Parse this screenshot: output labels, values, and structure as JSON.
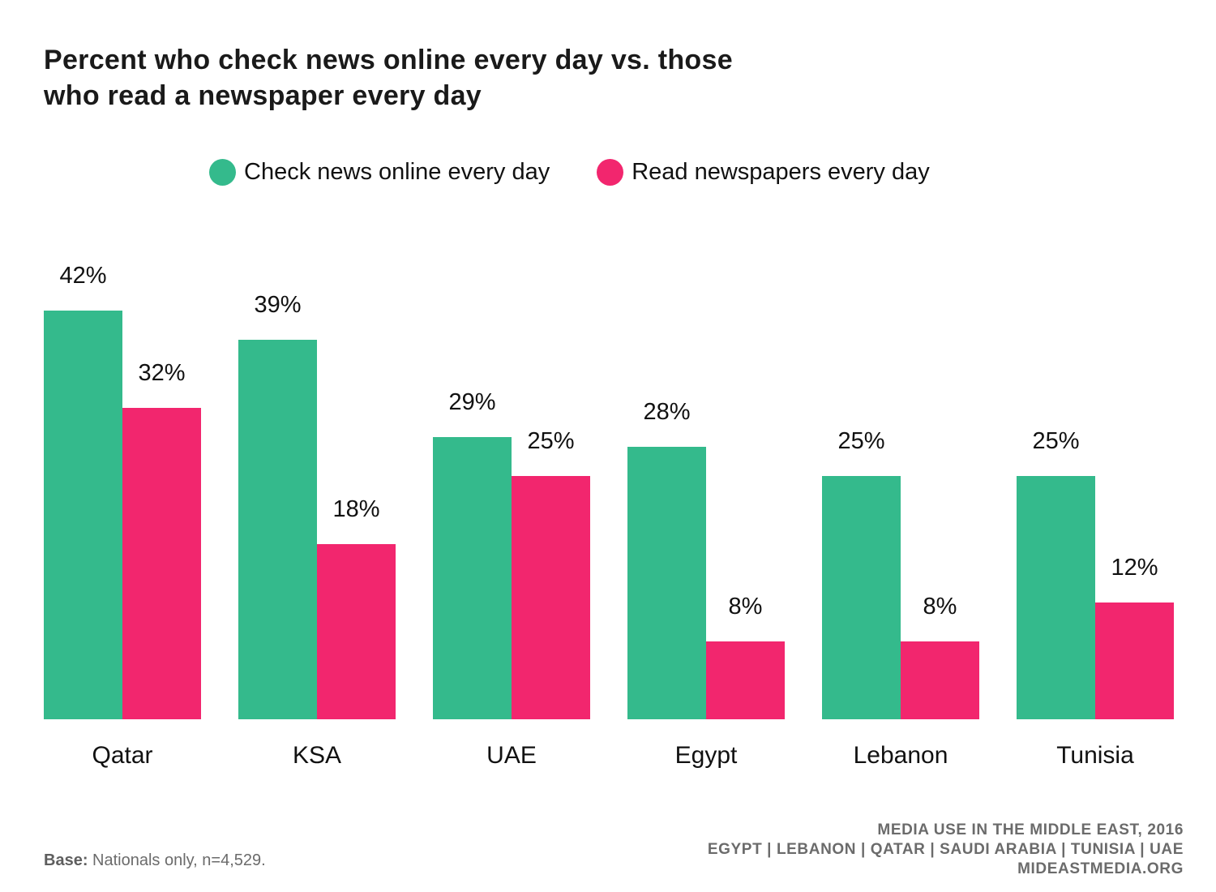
{
  "title_lines": [
    "Percent who check news online every day vs. those",
    "who read a newspaper every day"
  ],
  "legend": [
    {
      "label": "Check news online every day",
      "color": "#34ba8c"
    },
    {
      "label": "Read newspapers every day",
      "color": "#f2266e"
    }
  ],
  "chart_data": {
    "type": "bar",
    "title": "Percent who check news online every day vs. those who read a newspaper every day",
    "categories": [
      "Qatar",
      "KSA",
      "UAE",
      "Egypt",
      "Lebanon",
      "Tunisia"
    ],
    "series": [
      {
        "name": "Check news online every day",
        "color": "#34ba8c",
        "values": [
          42,
          39,
          29,
          28,
          25,
          25
        ],
        "labels": [
          "42%",
          "39%",
          "29%",
          "28%",
          "25%",
          "25%"
        ]
      },
      {
        "name": "Read newspapers every day",
        "color": "#f2266e",
        "values": [
          32,
          18,
          25,
          8,
          8,
          12
        ],
        "labels": [
          "32%",
          "18%",
          "25%",
          "8%",
          "8%",
          "12%"
        ]
      }
    ],
    "value_suffix": "%",
    "ylim": [
      0,
      42
    ],
    "grid": false,
    "legend_position": "top"
  },
  "footnote": {
    "label": "Base:",
    "text": " Nationals only, n=4,529."
  },
  "credit": [
    "MEDIA USE IN THE MIDDLE EAST, 2016",
    "EGYPT | LEBANON | QATAR | SAUDI ARABIA | TUNISIA | UAE",
    "MIDEASTMEDIA.ORG"
  ]
}
